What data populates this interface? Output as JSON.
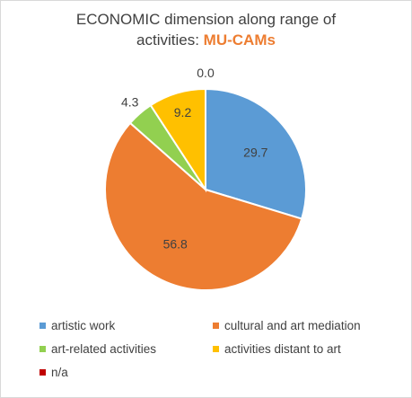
{
  "title": {
    "line1": "ECONOMIC dimension along range of",
    "line2_prefix": "activities: ",
    "line2_highlight": "MU-CAMs"
  },
  "colors": {
    "highlight": "#ed7d31",
    "label_text": "#404040"
  },
  "chart_data": {
    "type": "pie",
    "title": "ECONOMIC dimension along range of activities: MU-CAMs",
    "legend_position": "bottom",
    "slices": [
      {
        "label": "artistic work",
        "value": 29.7,
        "display": "29.7",
        "color": "#5b9bd5"
      },
      {
        "label": "cultural and art mediation",
        "value": 56.8,
        "display": "56.8",
        "color": "#ed7d31"
      },
      {
        "label": "art-related activities",
        "value": 4.3,
        "display": "4.3",
        "color": "#92d050"
      },
      {
        "label": "activities distant to art",
        "value": 9.2,
        "display": "9.2",
        "color": "#ffc000"
      },
      {
        "label": "n/a",
        "value": 0.0,
        "display": "0.0",
        "color": "#c00000"
      }
    ]
  }
}
